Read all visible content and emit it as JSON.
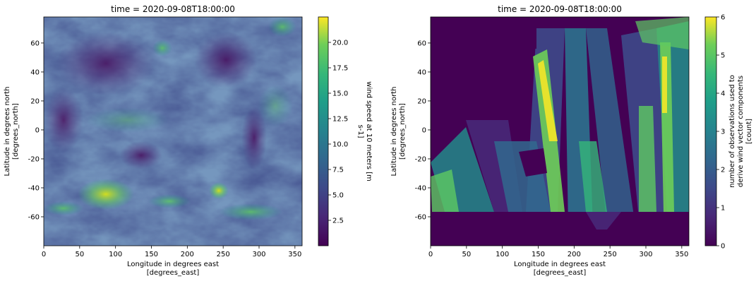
{
  "chart_data": [
    {
      "type": "heatmap",
      "title": "time = 2020-09-08T18:00:00",
      "xlabel_line1": "Longitude in degrees east",
      "xlabel_line2": "[degrees_east]",
      "ylabel_line1": "Latitude in degrees north",
      "ylabel_line2": "[degrees_north]",
      "xlim": [
        0,
        360
      ],
      "ylim": [
        -80,
        78
      ],
      "xticks": [
        0,
        50,
        100,
        150,
        200,
        250,
        300,
        350
      ],
      "yticks": [
        -60,
        -40,
        -20,
        0,
        20,
        40,
        60
      ],
      "colorbar": {
        "label_line1": "wind speed at 10 meters [m",
        "label_line2": "s-1]",
        "range": [
          0,
          22.5
        ],
        "ticks": [
          "2.5",
          "5.0",
          "7.5",
          "10.0",
          "12.5",
          "15.0",
          "17.5",
          "20.0"
        ],
        "tick_values": [
          2.5,
          5.0,
          7.5,
          10.0,
          12.5,
          15.0,
          17.5,
          20.0
        ],
        "colormap": "viridis"
      }
    },
    {
      "type": "heatmap",
      "title": "time = 2020-09-08T18:00:00",
      "xlabel_line1": "Longitude in degrees east",
      "xlabel_line2": "[degrees_east]",
      "ylabel_line1": "Latitude in degrees north",
      "ylabel_line2": "[degrees_north]",
      "xlim": [
        0,
        360
      ],
      "ylim": [
        -80,
        78
      ],
      "xticks": [
        0,
        50,
        100,
        150,
        200,
        250,
        300,
        350
      ],
      "yticks": [
        -60,
        -40,
        -20,
        0,
        20,
        40,
        60
      ],
      "colorbar": {
        "label_line1": "number of observations used to",
        "label_line2": "derive wind vector components",
        "label_line3": "[count]",
        "range": [
          0,
          6
        ],
        "ticks": [
          "0",
          "1",
          "2",
          "3",
          "4",
          "5",
          "6"
        ],
        "tick_values": [
          0,
          1,
          2,
          3,
          4,
          5,
          6
        ],
        "colormap": "viridis"
      }
    }
  ],
  "colors": {
    "viridis_low": "#440154",
    "viridis_mid": "#21918c",
    "viridis_high": "#fde725"
  }
}
